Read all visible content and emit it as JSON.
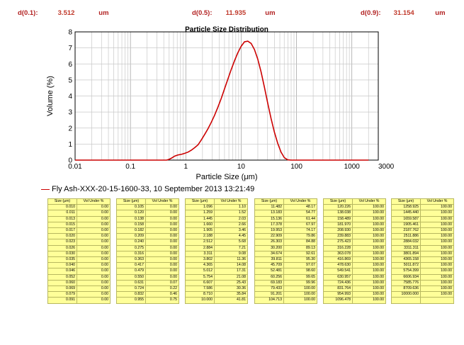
{
  "stats": [
    {
      "label": "d(0.1):",
      "value": "3.512",
      "unit": "um"
    },
    {
      "label": "d(0.5):",
      "value": "11.935",
      "unit": "um"
    },
    {
      "label": "d(0.9):",
      "value": "31.154",
      "unit": "um"
    }
  ],
  "legend_label": "Fly Ash-XXX-20-15-1600-33, 10 September 2013 13:21:49",
  "table_headers": {
    "size": "Size (μm)",
    "vol": "Vol Under %"
  },
  "table_columns": [
    {
      "sizes": [
        "0.010",
        "0.011",
        "0.013",
        "0.015",
        "0.017",
        "0.020",
        "0.023",
        "0.026",
        "0.030",
        "0.035",
        "0.040",
        "0.046",
        "0.052",
        "0.060",
        "0.069",
        "0.079",
        "0.091"
      ],
      "vols": [
        "0.00",
        "0.00",
        "0.00",
        "0.00",
        "0.00",
        "0.00",
        "0.00",
        "0.00",
        "0.00",
        "0.00",
        "0.00",
        "0.00",
        "0.00",
        "0.00",
        "0.00",
        "0.00",
        "0.00"
      ]
    },
    {
      "sizes": [
        "0.105",
        "0.120",
        "0.138",
        "0.158",
        "0.182",
        "0.209",
        "0.240",
        "0.275",
        "0.316",
        "0.363",
        "0.417",
        "0.479",
        "0.550",
        "0.631",
        "0.724",
        "0.832",
        "0.955"
      ],
      "vols": [
        "0.00",
        "0.00",
        "0.00",
        "0.00",
        "0.00",
        "0.00",
        "0.00",
        "0.00",
        "0.00",
        "0.00",
        "0.00",
        "0.00",
        "0.00",
        "0.07",
        "0.22",
        "0.46",
        "0.75"
      ]
    },
    {
      "sizes": [
        "1.096",
        "1.259",
        "1.445",
        "1.660",
        "1.905",
        "2.188",
        "2.512",
        "2.884",
        "3.311",
        "3.802",
        "4.365",
        "5.012",
        "5.754",
        "6.607",
        "7.586",
        "8.710",
        "10.000"
      ],
      "vols": [
        "1.10",
        "1.52",
        "2.03",
        "2.66",
        "3.46",
        "4.45",
        "5.68",
        "7.21",
        "9.08",
        "11.36",
        "14.08",
        "17.31",
        "21.08",
        "25.43",
        "30.36",
        "35.84",
        "41.81"
      ]
    },
    {
      "sizes": [
        "11.482",
        "13.183",
        "15.136",
        "17.378",
        "19.953",
        "22.909",
        "26.303",
        "30.200",
        "34.674",
        "39.811",
        "45.709",
        "52.481",
        "60.256",
        "69.183",
        "79.433",
        "91.201",
        "104.713"
      ],
      "vols": [
        "48.17",
        "54.77",
        "61.44",
        "67.97",
        "74.17",
        "79.86",
        "84.88",
        "89.13",
        "92.61",
        "95.30",
        "97.07",
        "98.60",
        "99.65",
        "99.96",
        "100.00",
        "100.00",
        "100.00"
      ]
    },
    {
      "sizes": [
        "120.226",
        "138.038",
        "158.489",
        "181.970",
        "208.930",
        "239.883",
        "275.423",
        "316.228",
        "363.078",
        "416.869",
        "478.630",
        "549.541",
        "630.957",
        "724.436",
        "831.764",
        "954.993",
        "1096.478"
      ],
      "vols": [
        "100.00",
        "100.00",
        "100.00",
        "100.00",
        "100.00",
        "100.00",
        "100.00",
        "100.00",
        "100.00",
        "100.00",
        "100.00",
        "100.00",
        "100.00",
        "100.00",
        "100.00",
        "100.00",
        "100.00"
      ]
    },
    {
      "sizes": [
        "1258.925",
        "1445.440",
        "1659.587",
        "1905.461",
        "2187.762",
        "2511.886",
        "2884.032",
        "3311.311",
        "3801.894",
        "4365.158",
        "5011.872",
        "5754.399",
        "6606.934",
        "7585.776",
        "8709.636",
        "10000.000",
        ""
      ],
      "vols": [
        "100.00",
        "100.00",
        "100.00",
        "100.00",
        "100.00",
        "100.00",
        "100.00",
        "100.00",
        "100.00",
        "100.00",
        "100.00",
        "100.00",
        "100.00",
        "100.00",
        "100.00",
        "100.00",
        ""
      ]
    }
  ],
  "chart_data": {
    "type": "line",
    "title": "Particle Size Distribution",
    "xlabel": "Particle Size (μm)",
    "ylabel": "Volume (%)",
    "x_scale": "log",
    "xlim": [
      0.01,
      3000
    ],
    "ylim": [
      0,
      8
    ],
    "x_ticks": [
      "0.01",
      "0.1",
      "1",
      "10",
      "100",
      "1000",
      "3000"
    ],
    "y_ticks": [
      "0",
      "1",
      "2",
      "3",
      "4",
      "5",
      "6",
      "7",
      "8"
    ],
    "grid": true,
    "series_color": "#cc0000",
    "x": [
      0.01,
      0.45,
      0.5,
      0.55,
      0.63,
      0.72,
      0.83,
      0.95,
      1.1,
      1.26,
      1.45,
      1.66,
      1.9,
      2.19,
      2.51,
      2.88,
      3.31,
      3.8,
      4.37,
      5.01,
      5.75,
      6.61,
      7.59,
      8.71,
      10,
      11.48,
      13.18,
      15.14,
      17.38,
      19.95,
      22.91,
      26.3,
      30.2,
      34.67,
      39.81,
      45.71,
      52.48,
      60.26,
      69.18,
      79.43,
      2000
    ],
    "y": [
      0,
      0,
      0.05,
      0.12,
      0.25,
      0.32,
      0.36,
      0.42,
      0.5,
      0.62,
      0.78,
      0.95,
      1.25,
      1.6,
      1.95,
      2.35,
      2.8,
      3.3,
      3.85,
      4.45,
      5.05,
      5.65,
      6.2,
      6.7,
      7.1,
      7.38,
      7.42,
      7.28,
      6.9,
      6.3,
      5.5,
      4.55,
      3.55,
      2.6,
      1.75,
      1.05,
      0.5,
      0.15,
      0.02,
      0,
      0
    ]
  }
}
